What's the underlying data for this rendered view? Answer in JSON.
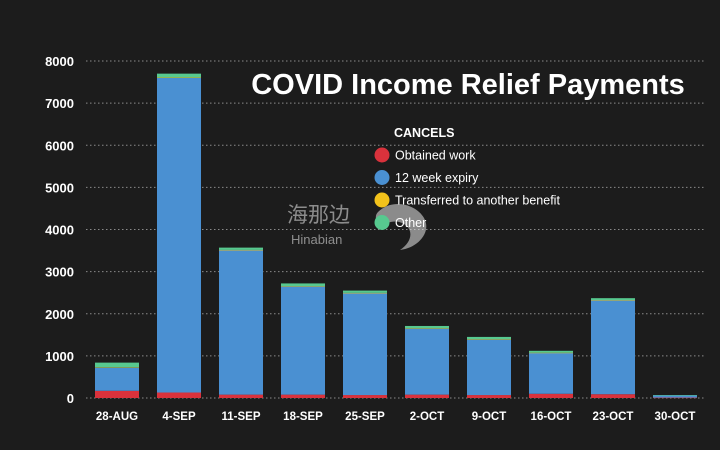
{
  "chart_data": {
    "type": "bar",
    "stacked": true,
    "title": "COVID Income Relief Payments",
    "legend_title": "CANCELS",
    "legend_position": "top-right",
    "categories": [
      "28-AUG",
      "4-SEP",
      "11-SEP",
      "18-SEP",
      "25-SEP",
      "2-OCT",
      "9-OCT",
      "16-OCT",
      "23-OCT",
      "30-OCT"
    ],
    "series": [
      {
        "name": "Obtained work",
        "color": "#d9323c",
        "values": [
          170,
          130,
          80,
          80,
          70,
          80,
          70,
          100,
          90,
          10
        ]
      },
      {
        "name": "12 week expiry",
        "color": "#4a90d2",
        "values": [
          550,
          7470,
          3430,
          2570,
          2420,
          1570,
          1320,
          970,
          2230,
          50
        ]
      },
      {
        "name": "Transferred to another benefit",
        "color": "#f2c21b",
        "values": [
          10,
          10,
          5,
          5,
          5,
          5,
          5,
          5,
          5,
          0
        ]
      },
      {
        "name": "Other",
        "color": "#57c98f",
        "values": [
          110,
          90,
          55,
          65,
          55,
          55,
          55,
          45,
          45,
          10
        ]
      }
    ],
    "yticks": [
      0,
      1000,
      2000,
      3000,
      4000,
      5000,
      6000,
      7000,
      8000
    ],
    "ylim": [
      0,
      8000
    ],
    "grid": true,
    "xlabel": "",
    "ylabel": ""
  },
  "watermark": {
    "line1": "海那边",
    "line2": "Hinabian"
  },
  "colors": {
    "background": "#1c1c1c",
    "text": "#ffffff",
    "grid": "#8a8a8a"
  }
}
